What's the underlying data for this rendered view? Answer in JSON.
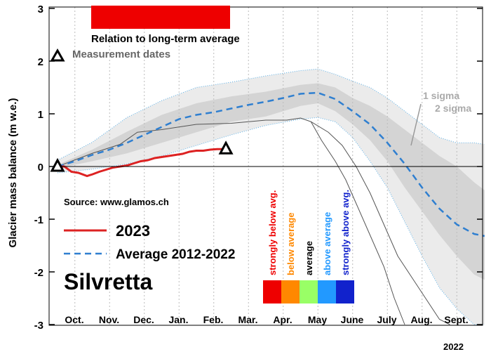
{
  "chart_data": {
    "type": "line",
    "title": "Silvretta",
    "ylabel": "Glacier mass balance (m w.e.)",
    "xlabel": "",
    "year_label": "2022",
    "source": "Source: www.glamos.ch",
    "ylim": [
      -3,
      3
    ],
    "yticks": [
      3,
      2,
      1,
      0,
      -1,
      -2,
      -3
    ],
    "months": [
      "Oct.",
      "Nov.",
      "Dec.",
      "Jan.",
      "Feb.",
      "Mar.",
      "Apr.",
      "May",
      "June",
      "July",
      "Aug.",
      "Sept."
    ],
    "grid": "vertical dotted lines per month",
    "relation_label": "Relation to long-term average",
    "relation_color": "#ee0000",
    "measurement_label": "Measurement dates",
    "measurement_dates": [
      {
        "month": 0,
        "value": 0.0
      },
      {
        "month": 4.85,
        "value": 0.33
      }
    ],
    "sigma_labels": [
      "1 sigma",
      "2 sigma"
    ],
    "legend": {
      "series_2023": "2023",
      "series_avg": "Average 2012-2022",
      "position": "bottom-left"
    },
    "colors": {
      "series_2023": "#dd2222",
      "series_avg": "#2f7fd0",
      "envelope": "#555555",
      "band_1sigma": "#d4d4d4",
      "band_2sigma": "#ebebeb"
    },
    "relation_scale": [
      {
        "label": "strongly below avg.",
        "color": "#ee0000"
      },
      {
        "label": "below average",
        "color": "#ff8800"
      },
      {
        "label": "average",
        "color": "#99ff66"
      },
      {
        "label": "above average",
        "color": "#2299ff"
      },
      {
        "label": "strongly above avg.",
        "color": "#1122cc"
      }
    ],
    "series": [
      {
        "name": "2023",
        "points": [
          [
            0,
            0
          ],
          [
            0.2,
            0.0
          ],
          [
            0.4,
            -0.1
          ],
          [
            0.6,
            -0.12
          ],
          [
            0.85,
            -0.18
          ],
          [
            1.0,
            -0.15
          ],
          [
            1.2,
            -0.1
          ],
          [
            1.4,
            -0.06
          ],
          [
            1.6,
            -0.02
          ],
          [
            1.8,
            0.0
          ],
          [
            2.0,
            0.02
          ],
          [
            2.2,
            0.06
          ],
          [
            2.4,
            0.1
          ],
          [
            2.6,
            0.12
          ],
          [
            2.8,
            0.16
          ],
          [
            3.0,
            0.18
          ],
          [
            3.2,
            0.2
          ],
          [
            3.4,
            0.22
          ],
          [
            3.6,
            0.24
          ],
          [
            3.8,
            0.28
          ],
          [
            4.0,
            0.3
          ],
          [
            4.2,
            0.3
          ],
          [
            4.4,
            0.32
          ],
          [
            4.6,
            0.33
          ],
          [
            4.85,
            0.33
          ]
        ]
      },
      {
        "name": "Average 2012-2022",
        "points": [
          [
            0,
            0
          ],
          [
            0.5,
            0.1
          ],
          [
            1,
            0.22
          ],
          [
            1.5,
            0.32
          ],
          [
            2,
            0.45
          ],
          [
            2.5,
            0.6
          ],
          [
            3,
            0.75
          ],
          [
            3.5,
            0.9
          ],
          [
            4,
            0.98
          ],
          [
            4.5,
            1.03
          ],
          [
            5,
            1.1
          ],
          [
            5.5,
            1.17
          ],
          [
            6,
            1.23
          ],
          [
            6.5,
            1.3
          ],
          [
            7,
            1.38
          ],
          [
            7.5,
            1.4
          ],
          [
            8,
            1.28
          ],
          [
            8.5,
            1.05
          ],
          [
            9,
            0.8
          ],
          [
            9.5,
            0.45
          ],
          [
            10,
            0.05
          ],
          [
            10.5,
            -0.4
          ],
          [
            11,
            -0.8
          ],
          [
            11.5,
            -1.1
          ],
          [
            12,
            -1.28
          ],
          [
            12.3,
            -1.32
          ]
        ]
      }
    ],
    "bands": {
      "sigma1": {
        "x": [
          0,
          1,
          2,
          3,
          4,
          5,
          6,
          7,
          7.5,
          8,
          8.5,
          9,
          9.5,
          10,
          10.5,
          11,
          11.5,
          12,
          12.3
        ],
        "upper": [
          0.03,
          0.32,
          0.66,
          0.98,
          1.2,
          1.33,
          1.42,
          1.55,
          1.58,
          1.5,
          1.3,
          1.15,
          0.95,
          0.7,
          0.45,
          0.2,
          0.0,
          -0.3,
          -0.45
        ],
        "lower": [
          -0.03,
          0.1,
          0.25,
          0.45,
          0.65,
          0.85,
          0.95,
          1.15,
          1.2,
          1.05,
          0.8,
          0.5,
          0.1,
          -0.4,
          -0.85,
          -1.3,
          -1.7,
          -2.05,
          -2.15
        ]
      },
      "sigma2": {
        "x": [
          0,
          1,
          2,
          3,
          4,
          5,
          6,
          7,
          7.5,
          8,
          8.5,
          9,
          9.5,
          10,
          10.5,
          11,
          11.5,
          12,
          12.3
        ],
        "upper": [
          0.12,
          0.46,
          0.93,
          1.25,
          1.5,
          1.6,
          1.72,
          1.82,
          1.85,
          1.75,
          1.62,
          1.5,
          1.3,
          1.05,
          0.8,
          0.55,
          0.45,
          0.45,
          0.42
        ],
        "lower": [
          -0.12,
          -0.05,
          0.05,
          0.2,
          0.4,
          0.6,
          0.78,
          0.9,
          0.93,
          0.85,
          0.55,
          0.1,
          -0.4,
          -1.05,
          -1.7,
          -2.3,
          -2.7,
          -3.0,
          -3.0
        ]
      }
    },
    "envelope": {
      "upper": [
        [
          0,
          0
        ],
        [
          1,
          0.25
        ],
        [
          1.8,
          0.42
        ],
        [
          2.3,
          0.65
        ],
        [
          3,
          0.7
        ],
        [
          3.5,
          0.75
        ],
        [
          4,
          0.8
        ],
        [
          5,
          0.82
        ],
        [
          6,
          0.88
        ],
        [
          6.6,
          0.88
        ],
        [
          7,
          0.92
        ],
        [
          7.3,
          0.85
        ],
        [
          7.8,
          0.65
        ],
        [
          8.2,
          0.4
        ],
        [
          8.6,
          0.0
        ],
        [
          9,
          -0.5
        ],
        [
          9.4,
          -1.1
        ],
        [
          9.8,
          -1.7
        ],
        [
          10.2,
          -2.1
        ],
        [
          10.6,
          -2.5
        ],
        [
          11.0,
          -2.9
        ],
        [
          11.3,
          -3.0
        ]
      ],
      "lower": [
        [
          7.3,
          0.85
        ],
        [
          7.6,
          0.5
        ],
        [
          8,
          0.1
        ],
        [
          8.3,
          -0.25
        ],
        [
          8.6,
          -0.7
        ],
        [
          9,
          -1.3
        ],
        [
          9.4,
          -1.9
        ],
        [
          9.7,
          -2.5
        ],
        [
          10,
          -3.0
        ]
      ]
    }
  }
}
